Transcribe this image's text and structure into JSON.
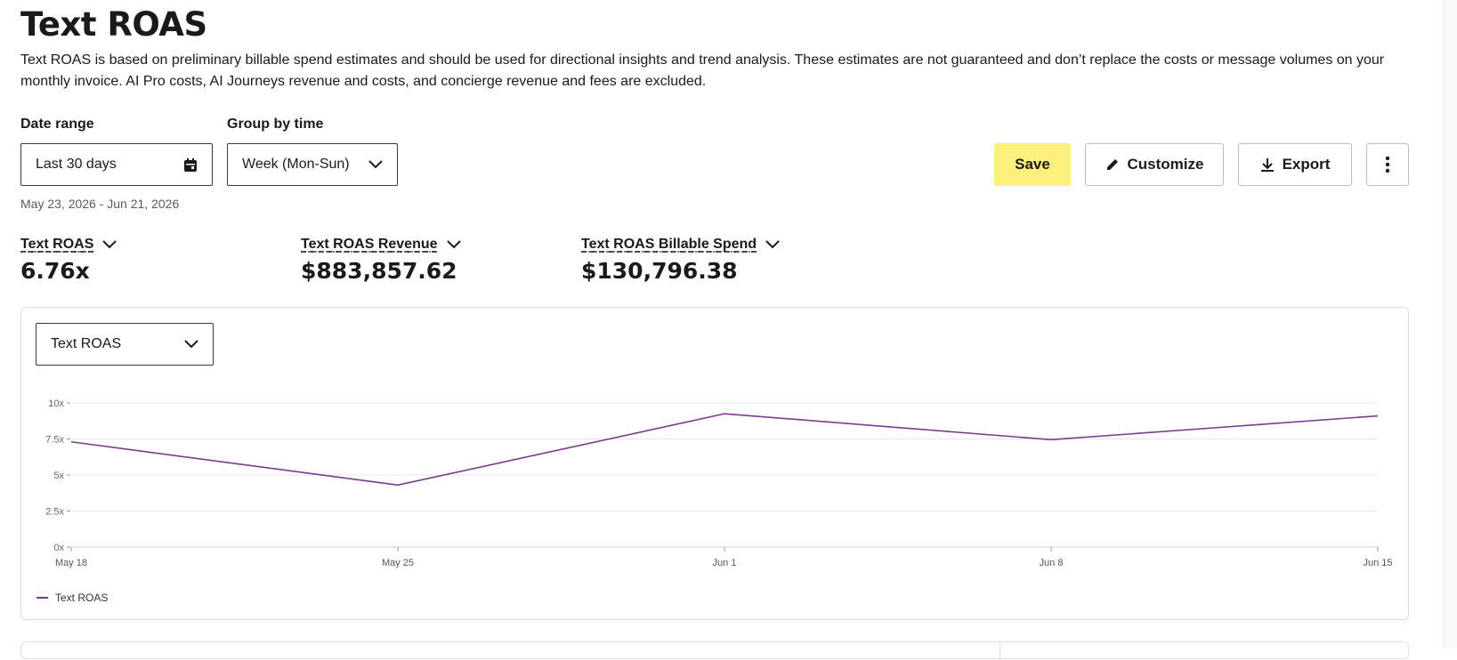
{
  "header": {
    "title": "Text ROAS",
    "description": "Text ROAS is based on preliminary billable spend estimates and should be used for directional insights and trend analysis. These estimates are not guaranteed and don’t replace the costs or message volumes on your monthly invoice. AI Pro costs, AI Journeys revenue and costs, and concierge revenue and fees are excluded."
  },
  "filters": {
    "date_range_label": "Date range",
    "date_range_value": "Last 30 days",
    "date_range_sub": "May 23, 2026 - Jun 21, 2026",
    "group_by_label": "Group by time",
    "group_by_value": "Week (Mon-Sun)"
  },
  "toolbar": {
    "save_label": "Save",
    "customize_label": "Customize",
    "export_label": "Export"
  },
  "metrics": [
    {
      "label": "Text ROAS",
      "value": "6.76x"
    },
    {
      "label": "Text ROAS Revenue",
      "value": "$883,857.62"
    },
    {
      "label": "Text ROAS Billable Spend",
      "value": "$130,796.38"
    }
  ],
  "chart_card": {
    "metric_select_value": "Text ROAS"
  },
  "chart_data": {
    "type": "line",
    "x": [
      "May 18",
      "May 25",
      "Jun 1",
      "Jun 8",
      "Jun 15"
    ],
    "series": [
      {
        "name": "Text ROAS",
        "values": [
          7.3,
          4.3,
          9.25,
          7.45,
          9.1
        ],
        "color": "#7a3b8a"
      }
    ],
    "yticks": [
      "0x",
      "2.5x",
      "5x",
      "7.5x",
      "10x"
    ],
    "ylim": [
      0,
      10
    ],
    "grid": true,
    "legend_position": "bottom-left"
  },
  "colors": {
    "accent_yellow": "#fdf07c",
    "series_purple": "#7a3b8a"
  },
  "icons": {
    "date": "calendar-icon",
    "dropdown": "chevron-down-icon",
    "customize": "pencil-icon",
    "export": "download-icon",
    "more": "kebab-menu-icon"
  }
}
